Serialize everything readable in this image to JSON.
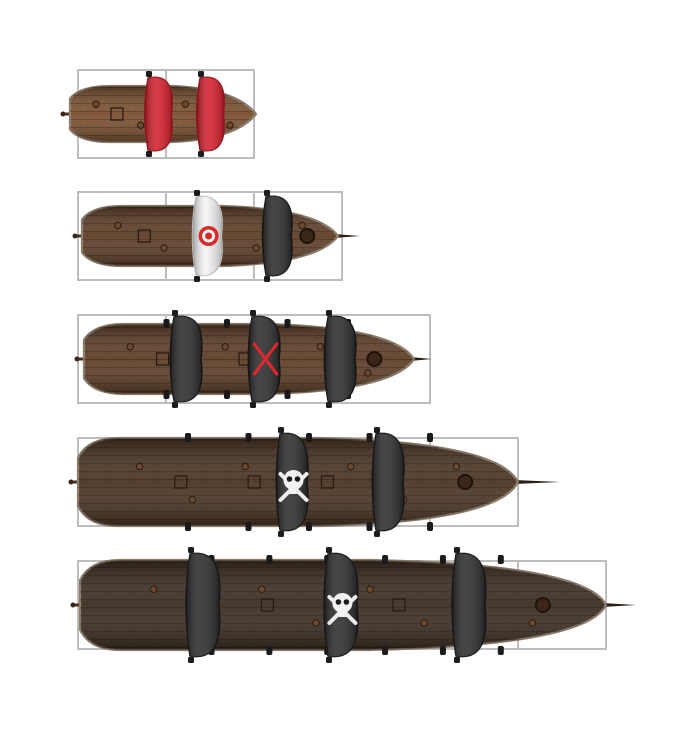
{
  "sheet": {
    "background": "#ffffff",
    "grid_color": "#bdbdbd",
    "ships": [
      {
        "id": "ship-1",
        "tiles": 2,
        "sails": [
          {
            "color": "red",
            "emblem": "none"
          },
          {
            "color": "red",
            "emblem": "none"
          }
        ],
        "deck_tone": "light-brown",
        "bowsprit": false
      },
      {
        "id": "ship-2",
        "tiles": 3,
        "sails": [
          {
            "color": "white",
            "emblem": "target"
          },
          {
            "color": "black",
            "emblem": "none"
          }
        ],
        "deck_tone": "brown",
        "bowsprit": true
      },
      {
        "id": "ship-3",
        "tiles": 4,
        "sails": [
          {
            "color": "black",
            "emblem": "none"
          },
          {
            "color": "black",
            "emblem": "red-x"
          },
          {
            "color": "black",
            "emblem": "none"
          }
        ],
        "deck_tone": "brown",
        "bowsprit": true
      },
      {
        "id": "ship-4",
        "tiles": 5,
        "sails": [
          {
            "color": "black",
            "emblem": "skull-and-crossbones"
          },
          {
            "color": "black",
            "emblem": "none"
          }
        ],
        "deck_tone": "dark-brown",
        "bowsprit": true
      },
      {
        "id": "ship-5",
        "tiles": 6,
        "sails": [
          {
            "color": "black",
            "emblem": "none"
          },
          {
            "color": "black",
            "emblem": "skull-and-crossbones"
          },
          {
            "color": "black",
            "emblem": "none"
          }
        ],
        "deck_tone": "darkest-brown",
        "bowsprit": true
      }
    ]
  },
  "colors": {
    "sail_red": "#d31f2b",
    "sail_red_dark": "#9e1420",
    "sail_black": "#2b2b2d",
    "sail_black_dark": "#171718",
    "sail_white": "#f4f4f4",
    "target_red": "#d72b2b",
    "x_red": "#e2262c",
    "hull_rim": "#8a7a68",
    "light-brown": "#7a4f2e",
    "brown": "#5e3d25",
    "dark-brown": "#4a3322",
    "darkest-brown": "#3a2c20"
  }
}
